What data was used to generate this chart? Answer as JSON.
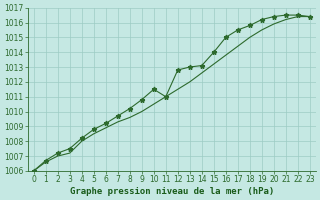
{
  "title": "Graphe pression niveau de la mer (hPa)",
  "x": [
    0,
    1,
    2,
    3,
    4,
    5,
    6,
    7,
    8,
    9,
    10,
    11,
    12,
    13,
    14,
    15,
    16,
    17,
    18,
    19,
    20,
    21,
    22,
    23
  ],
  "line1_with_markers": [
    1006.0,
    1006.7,
    1007.2,
    1007.5,
    1008.2,
    1008.8,
    1009.2,
    1009.7,
    1010.2,
    1010.8,
    1011.5,
    1011.0,
    1012.8,
    1013.0,
    1013.1,
    1014.0,
    1015.0,
    1015.5,
    1015.8,
    1016.2,
    1016.4,
    1016.5,
    1016.5,
    1016.4
  ],
  "line2_smooth": [
    1006.0,
    1006.6,
    1007.0,
    1007.2,
    1008.0,
    1008.5,
    1008.9,
    1009.3,
    1009.6,
    1010.0,
    1010.5,
    1011.0,
    1011.5,
    1012.0,
    1012.6,
    1013.2,
    1013.8,
    1014.4,
    1015.0,
    1015.5,
    1015.9,
    1016.2,
    1016.4,
    1016.4
  ],
  "ylim": [
    1006,
    1017
  ],
  "xlim": [
    -0.5,
    23.5
  ],
  "yticks": [
    1006,
    1007,
    1008,
    1009,
    1010,
    1011,
    1012,
    1013,
    1014,
    1015,
    1016,
    1017
  ],
  "xticks": [
    0,
    1,
    2,
    3,
    4,
    5,
    6,
    7,
    8,
    9,
    10,
    11,
    12,
    13,
    14,
    15,
    16,
    17,
    18,
    19,
    20,
    21,
    22,
    23
  ],
  "line_color": "#2d6a2d",
  "marker": "*",
  "bg_color": "#c5e8e3",
  "grid_color": "#9dccc4",
  "title_color": "#1a5c1a",
  "tick_fontsize": 5.5,
  "title_fontsize": 6.5,
  "linewidth": 0.8,
  "markersize": 3.5
}
